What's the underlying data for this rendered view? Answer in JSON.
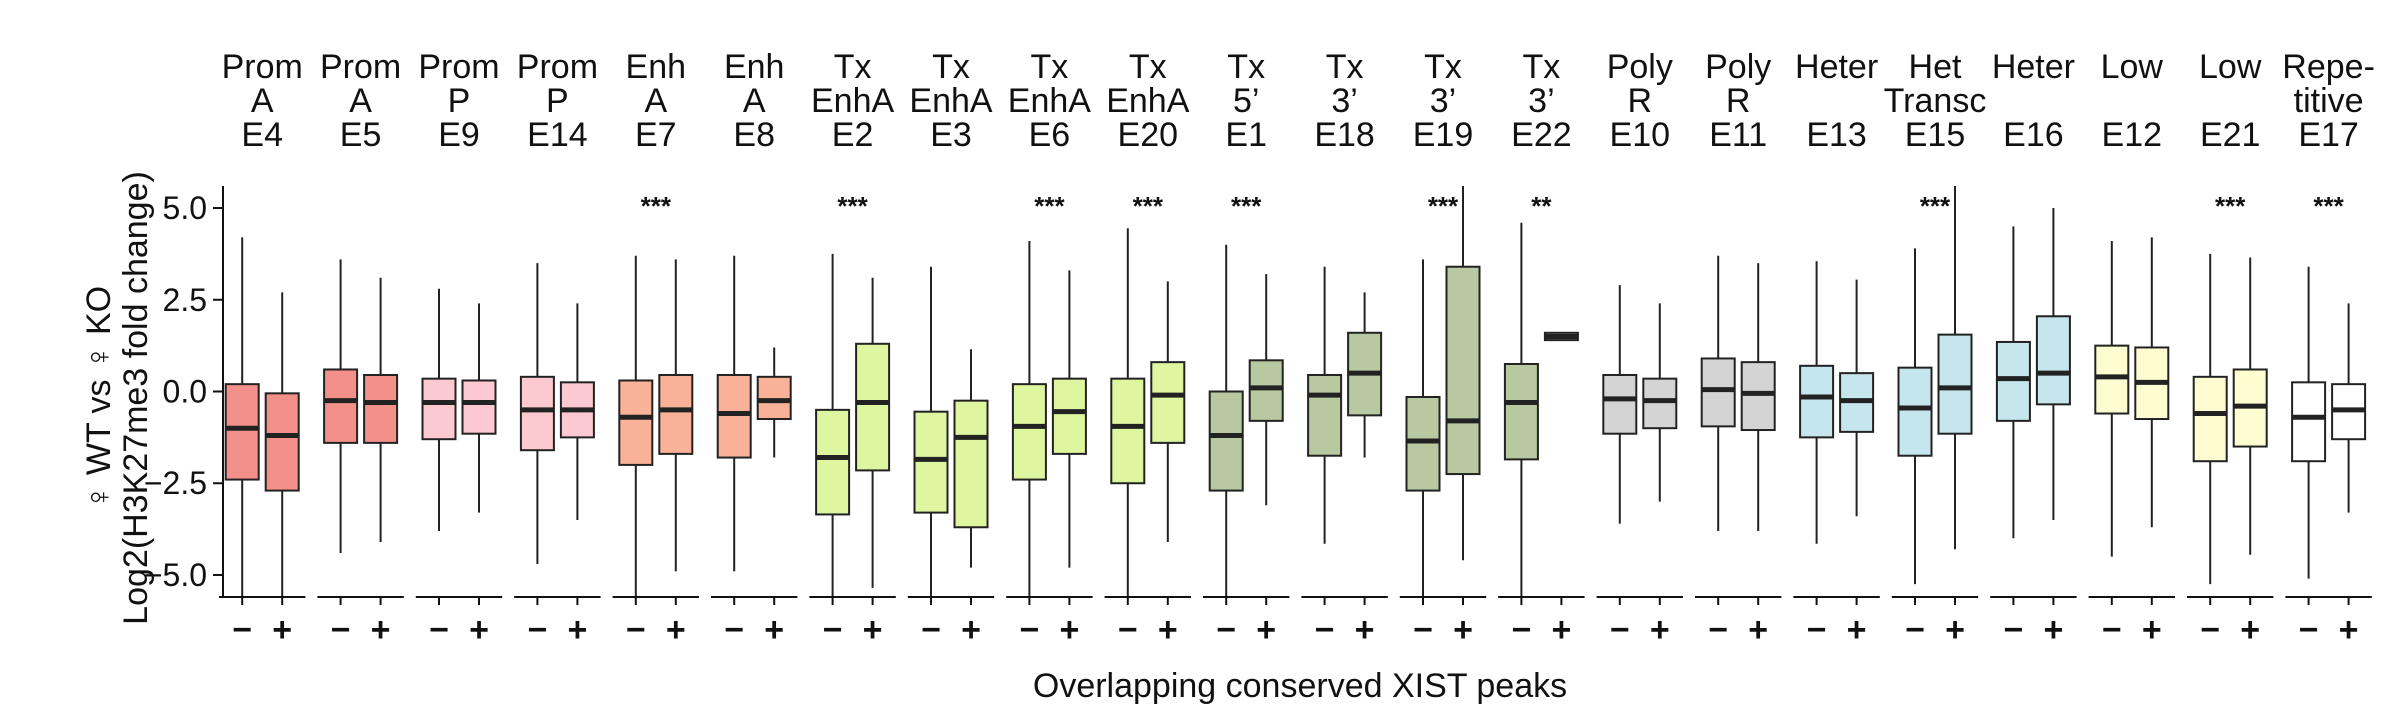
{
  "chart_data": {
    "type": "boxplot",
    "ylabel_line1": "♀ WT vs ♀ KO",
    "ylabel_line2": "Log2(H3K27me3 fold change)",
    "xlabel": "Overlapping conserved XIST peaks",
    "ylim": [
      -5.6,
      5.6
    ],
    "yticks": [
      5.0,
      2.5,
      0.0,
      -2.5,
      -5.0
    ],
    "ytick_labels": [
      "5.0",
      "2.5",
      "0.0",
      "−2.5",
      "−5.0"
    ],
    "group_labels": [
      "−",
      "+"
    ],
    "groups": [
      {
        "label": [
          "Prom",
          "A",
          "E4"
        ],
        "color": "#f4908a",
        "sig": "",
        "boxes": [
          {
            "q1": -2.4,
            "median": -1.0,
            "q3": 0.2,
            "wlow": -5.6,
            "whigh": 4.2
          },
          {
            "q1": -2.7,
            "median": -1.2,
            "q3": -0.05,
            "wlow": -5.6,
            "whigh": 2.7
          }
        ]
      },
      {
        "label": [
          "Prom",
          "A",
          "E5"
        ],
        "color": "#f4908a",
        "sig": "",
        "boxes": [
          {
            "q1": -1.4,
            "median": -0.25,
            "q3": 0.6,
            "wlow": -4.4,
            "whigh": 3.6
          },
          {
            "q1": -1.4,
            "median": -0.3,
            "q3": 0.45,
            "wlow": -4.1,
            "whigh": 3.1
          }
        ]
      },
      {
        "label": [
          "Prom",
          "P",
          "E9"
        ],
        "color": "#fbc9cf",
        "sig": "",
        "boxes": [
          {
            "q1": -1.3,
            "median": -0.3,
            "q3": 0.35,
            "wlow": -3.8,
            "whigh": 2.8
          },
          {
            "q1": -1.15,
            "median": -0.3,
            "q3": 0.3,
            "wlow": -3.3,
            "whigh": 2.4
          }
        ]
      },
      {
        "label": [
          "Prom",
          "P",
          "E14"
        ],
        "color": "#fbc9cf",
        "sig": "",
        "boxes": [
          {
            "q1": -1.6,
            "median": -0.5,
            "q3": 0.4,
            "wlow": -4.7,
            "whigh": 3.5
          },
          {
            "q1": -1.25,
            "median": -0.5,
            "q3": 0.25,
            "wlow": -3.5,
            "whigh": 2.4
          }
        ]
      },
      {
        "label": [
          "Enh",
          "A",
          "E7"
        ],
        "color": "#f9b198",
        "sig": "***",
        "boxes": [
          {
            "q1": -2.0,
            "median": -0.7,
            "q3": 0.3,
            "wlow": -5.6,
            "whigh": 3.7
          },
          {
            "q1": -1.7,
            "median": -0.5,
            "q3": 0.45,
            "wlow": -4.9,
            "whigh": 3.6
          }
        ]
      },
      {
        "label": [
          "Enh",
          "A",
          "E8"
        ],
        "color": "#f9b198",
        "sig": "",
        "boxes": [
          {
            "q1": -1.8,
            "median": -0.6,
            "q3": 0.45,
            "wlow": -4.9,
            "whigh": 3.7
          },
          {
            "q1": -0.75,
            "median": -0.25,
            "q3": 0.4,
            "wlow": -1.8,
            "whigh": 1.2
          }
        ]
      },
      {
        "label": [
          "Tx",
          "EnhA",
          "E2"
        ],
        "color": "#dff6a1",
        "sig": "***",
        "boxes": [
          {
            "q1": -3.35,
            "median": -1.8,
            "q3": -0.5,
            "wlow": -5.6,
            "whigh": 3.75
          },
          {
            "q1": -2.15,
            "median": -0.3,
            "q3": 1.3,
            "wlow": -5.35,
            "whigh": 3.1
          }
        ]
      },
      {
        "label": [
          "Tx",
          "EnhA",
          "E3"
        ],
        "color": "#dff6a1",
        "sig": "",
        "boxes": [
          {
            "q1": -3.3,
            "median": -1.85,
            "q3": -0.55,
            "wlow": -5.6,
            "whigh": 3.4
          },
          {
            "q1": -3.7,
            "median": -1.25,
            "q3": -0.25,
            "wlow": -4.8,
            "whigh": 1.15
          }
        ]
      },
      {
        "label": [
          "Tx",
          "EnhA",
          "E6"
        ],
        "color": "#dff6a1",
        "sig": "***",
        "boxes": [
          {
            "q1": -2.4,
            "median": -0.95,
            "q3": 0.2,
            "wlow": -5.6,
            "whigh": 4.1
          },
          {
            "q1": -1.7,
            "median": -0.55,
            "q3": 0.35,
            "wlow": -4.8,
            "whigh": 3.3
          }
        ]
      },
      {
        "label": [
          "Tx",
          "EnhA",
          "E20"
        ],
        "color": "#dff6a1",
        "sig": "***",
        "boxes": [
          {
            "q1": -2.5,
            "median": -0.95,
            "q3": 0.35,
            "wlow": -5.6,
            "whigh": 4.45
          },
          {
            "q1": -1.4,
            "median": -0.1,
            "q3": 0.8,
            "wlow": -4.1,
            "whigh": 3.0
          }
        ]
      },
      {
        "label": [
          "Tx",
          "5’",
          "E1"
        ],
        "color": "#b8c9a1",
        "sig": "***",
        "boxes": [
          {
            "q1": -2.7,
            "median": -1.2,
            "q3": 0.0,
            "wlow": -5.6,
            "whigh": 4.0
          },
          {
            "q1": -0.8,
            "median": 0.1,
            "q3": 0.85,
            "wlow": -3.1,
            "whigh": 3.2
          }
        ]
      },
      {
        "label": [
          "Tx",
          "3’",
          "E18"
        ],
        "color": "#b8c9a1",
        "sig": "",
        "boxes": [
          {
            "q1": -1.75,
            "median": -0.1,
            "q3": 0.45,
            "wlow": -4.15,
            "whigh": 3.4
          },
          {
            "q1": -0.65,
            "median": 0.5,
            "q3": 1.6,
            "wlow": -1.8,
            "whigh": 2.7
          }
        ]
      },
      {
        "label": [
          "Tx",
          "3’",
          "E19"
        ],
        "color": "#b8c9a1",
        "sig": "***",
        "boxes": [
          {
            "q1": -2.7,
            "median": -1.35,
            "q3": -0.15,
            "wlow": -5.6,
            "whigh": 3.6
          },
          {
            "q1": -2.25,
            "median": -0.8,
            "q3": 3.4,
            "wlow": -4.6,
            "whigh": 5.6
          }
        ]
      },
      {
        "label": [
          "Tx",
          "3’",
          "E22"
        ],
        "color": "#b8c9a1",
        "sig": "**",
        "boxes": [
          {
            "q1": -1.85,
            "median": -0.3,
            "q3": 0.75,
            "wlow": -5.6,
            "whigh": 4.6
          },
          {
            "q1": 1.4,
            "median": 1.5,
            "q3": 1.6,
            "wlow": 1.4,
            "whigh": 1.6
          }
        ]
      },
      {
        "label": [
          "Poly",
          "R",
          "E10"
        ],
        "color": "#d4d4d4",
        "sig": "",
        "boxes": [
          {
            "q1": -1.15,
            "median": -0.2,
            "q3": 0.45,
            "wlow": -3.6,
            "whigh": 2.9
          },
          {
            "q1": -1.0,
            "median": -0.25,
            "q3": 0.35,
            "wlow": -3.0,
            "whigh": 2.4
          }
        ]
      },
      {
        "label": [
          "Poly",
          "R",
          "E11"
        ],
        "color": "#d4d4d4",
        "sig": "",
        "boxes": [
          {
            "q1": -0.95,
            "median": 0.05,
            "q3": 0.9,
            "wlow": -3.8,
            "whigh": 3.7
          },
          {
            "q1": -1.05,
            "median": -0.05,
            "q3": 0.8,
            "wlow": -3.8,
            "whigh": 3.5
          }
        ]
      },
      {
        "label": [
          "Heter",
          "",
          "E13"
        ],
        "color": "#c5e6ec",
        "sig": "",
        "boxes": [
          {
            "q1": -1.25,
            "median": -0.15,
            "q3": 0.7,
            "wlow": -4.15,
            "whigh": 3.55
          },
          {
            "q1": -1.1,
            "median": -0.25,
            "q3": 0.5,
            "wlow": -3.4,
            "whigh": 3.05
          }
        ]
      },
      {
        "label": [
          "Het",
          "Transc",
          "E15"
        ],
        "color": "#c5e6ec",
        "sig": "***",
        "boxes": [
          {
            "q1": -1.75,
            "median": -0.45,
            "q3": 0.65,
            "wlow": -5.25,
            "whigh": 3.9
          },
          {
            "q1": -1.15,
            "median": 0.1,
            "q3": 1.55,
            "wlow": -4.3,
            "whigh": 5.6
          }
        ]
      },
      {
        "label": [
          "Heter",
          "",
          "E16"
        ],
        "color": "#c5e6ec",
        "sig": "",
        "boxes": [
          {
            "q1": -0.8,
            "median": 0.35,
            "q3": 1.35,
            "wlow": -4.0,
            "whigh": 4.5
          },
          {
            "q1": -0.35,
            "median": 0.5,
            "q3": 2.05,
            "wlow": -3.5,
            "whigh": 5.0
          }
        ]
      },
      {
        "label": [
          "Low",
          "",
          "E12"
        ],
        "color": "#fdfdd1",
        "sig": "",
        "boxes": [
          {
            "q1": -0.6,
            "median": 0.4,
            "q3": 1.25,
            "wlow": -4.5,
            "whigh": 4.1
          },
          {
            "q1": -0.75,
            "median": 0.25,
            "q3": 1.2,
            "wlow": -3.7,
            "whigh": 4.2
          }
        ]
      },
      {
        "label": [
          "Low",
          "",
          "E21"
        ],
        "color": "#fdfdd1",
        "sig": "***",
        "boxes": [
          {
            "q1": -1.9,
            "median": -0.6,
            "q3": 0.4,
            "wlow": -5.25,
            "whigh": 3.75
          },
          {
            "q1": -1.5,
            "median": -0.4,
            "q3": 0.6,
            "wlow": -4.45,
            "whigh": 3.65
          }
        ]
      },
      {
        "label": [
          "Repe-",
          "titive",
          "E17"
        ],
        "color": "#ffffff",
        "sig": "***",
        "boxes": [
          {
            "q1": -1.9,
            "median": -0.7,
            "q3": 0.25,
            "wlow": -5.1,
            "whigh": 3.4
          },
          {
            "q1": -1.3,
            "median": -0.5,
            "q3": 0.2,
            "wlow": -3.3,
            "whigh": 2.4
          }
        ]
      }
    ]
  }
}
